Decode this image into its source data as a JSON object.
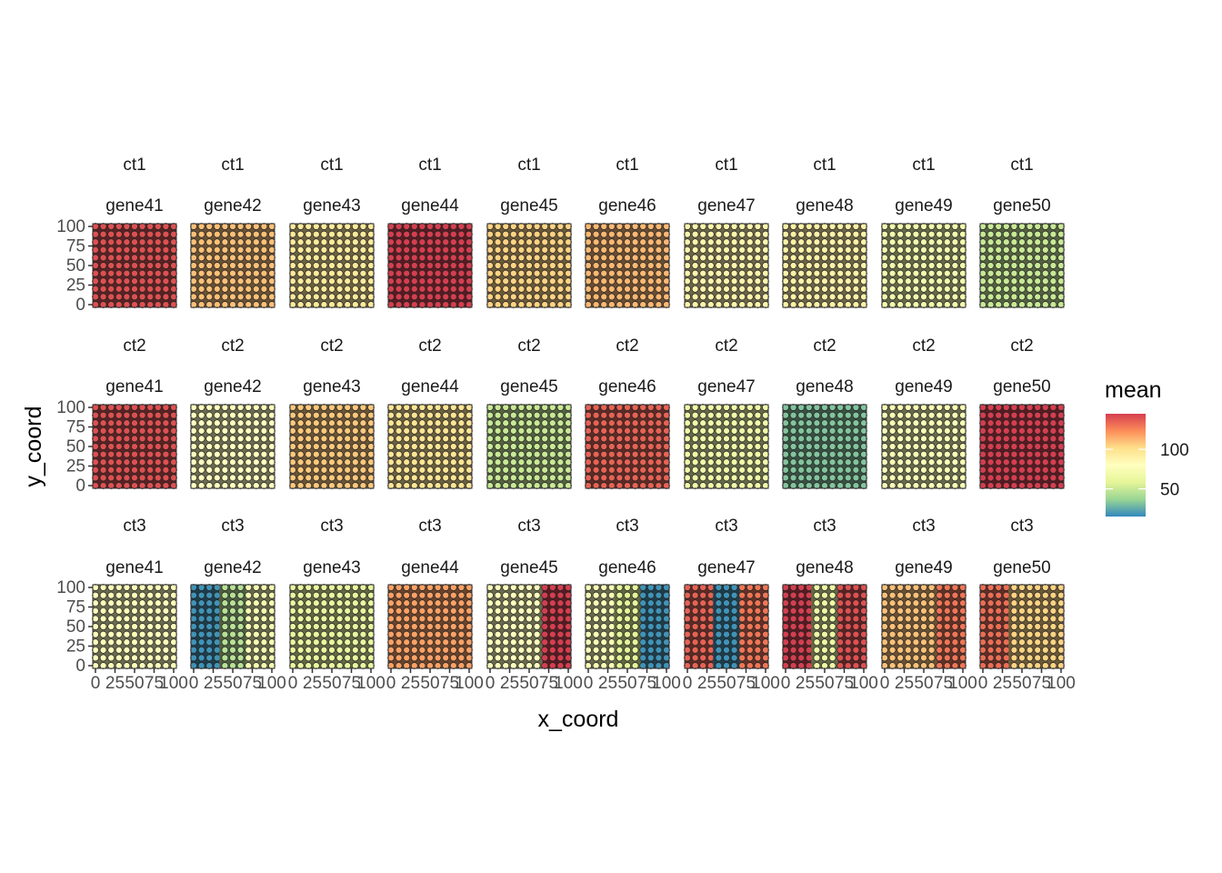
{
  "chart_data": {
    "type": "scatter",
    "facet_rows": [
      "ct1",
      "ct2",
      "ct3"
    ],
    "facet_cols": [
      "gene41",
      "gene42",
      "gene43",
      "gene44",
      "gene45",
      "gene46",
      "gene47",
      "gene48",
      "gene49",
      "gene50"
    ],
    "xlabel": "x_coord",
    "ylabel": "y_coord",
    "xlim": [
      0,
      100
    ],
    "ylim": [
      0,
      100
    ],
    "x_ticks": [
      "0",
      "25",
      "50",
      "75",
      "100"
    ],
    "y_ticks": [
      "0",
      "25",
      "50",
      "75",
      "100"
    ],
    "grid": false,
    "legend": {
      "title": "mean",
      "position": "right",
      "range": [
        15,
        145
      ],
      "ticks": [
        "50",
        "100"
      ],
      "palette": [
        "#3288bd",
        "#99d594",
        "#e6f598",
        "#ffffbf",
        "#fee08b",
        "#fc8d59",
        "#d53e4f"
      ]
    },
    "panels": [
      [
        {
          "segments": [
            {
              "x_end": 100,
              "mean": 140
            }
          ]
        },
        {
          "segments": [
            {
              "x_end": 100,
              "mean": 110
            }
          ]
        },
        {
          "segments": [
            {
              "x_end": 100,
              "mean": 95
            }
          ]
        },
        {
          "segments": [
            {
              "x_end": 100,
              "mean": 145
            }
          ]
        },
        {
          "segments": [
            {
              "x_end": 100,
              "mean": 105
            }
          ]
        },
        {
          "segments": [
            {
              "x_end": 100,
              "mean": 112
            }
          ]
        },
        {
          "segments": [
            {
              "x_end": 100,
              "mean": 88
            }
          ]
        },
        {
          "segments": [
            {
              "x_end": 100,
              "mean": 90
            }
          ]
        },
        {
          "segments": [
            {
              "x_end": 100,
              "mean": 70
            }
          ]
        },
        {
          "segments": [
            {
              "x_end": 100,
              "mean": 50
            }
          ]
        }
      ],
      [
        {
          "segments": [
            {
              "x_end": 100,
              "mean": 140
            }
          ]
        },
        {
          "segments": [
            {
              "x_end": 100,
              "mean": 80
            }
          ]
        },
        {
          "segments": [
            {
              "x_end": 100,
              "mean": 108
            }
          ]
        },
        {
          "segments": [
            {
              "x_end": 100,
              "mean": 98
            }
          ]
        },
        {
          "segments": [
            {
              "x_end": 100,
              "mean": 50
            }
          ]
        },
        {
          "segments": [
            {
              "x_end": 100,
              "mean": 135
            }
          ]
        },
        {
          "segments": [
            {
              "x_end": 100,
              "mean": 68
            }
          ]
        },
        {
          "segments": [
            {
              "x_end": 100,
              "mean": 32
            }
          ]
        },
        {
          "segments": [
            {
              "x_end": 100,
              "mean": 75
            }
          ]
        },
        {
          "segments": [
            {
              "x_end": 100,
              "mean": 145
            }
          ]
        }
      ],
      [
        {
          "segments": [
            {
              "x_end": 100,
              "mean": 78
            }
          ]
        },
        {
          "segments": [
            {
              "x_end": 33,
              "mean": 18
            },
            {
              "x_end": 67,
              "mean": 45
            },
            {
              "x_end": 100,
              "mean": 72
            }
          ]
        },
        {
          "segments": [
            {
              "x_end": 100,
              "mean": 62
            }
          ]
        },
        {
          "segments": [
            {
              "x_end": 100,
              "mean": 118
            }
          ]
        },
        {
          "segments": [
            {
              "x_end": 67,
              "mean": 78
            },
            {
              "x_end": 100,
              "mean": 145
            }
          ]
        },
        {
          "segments": [
            {
              "x_end": 33,
              "mean": 75
            },
            {
              "x_end": 67,
              "mean": 58
            },
            {
              "x_end": 100,
              "mean": 18
            }
          ]
        },
        {
          "segments": [
            {
              "x_end": 33,
              "mean": 135
            },
            {
              "x_end": 67,
              "mean": 18
            },
            {
              "x_end": 100,
              "mean": 130
            }
          ]
        },
        {
          "segments": [
            {
              "x_end": 33,
              "mean": 145
            },
            {
              "x_end": 67,
              "mean": 65
            },
            {
              "x_end": 100,
              "mean": 140
            }
          ]
        },
        {
          "segments": [
            {
              "x_end": 67,
              "mean": 110
            },
            {
              "x_end": 100,
              "mean": 130
            }
          ]
        },
        {
          "segments": [
            {
              "x_end": 33,
              "mean": 132
            },
            {
              "x_end": 100,
              "mean": 105
            }
          ]
        }
      ]
    ]
  }
}
